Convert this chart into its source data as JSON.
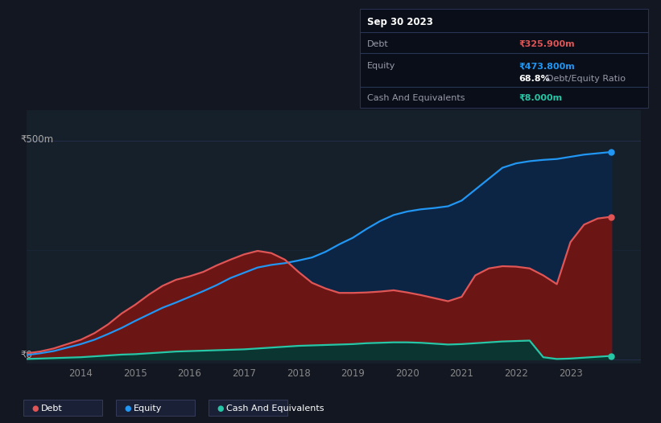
{
  "bg_color": "#131722",
  "plot_bg_color": "#15202b",
  "grid_color": "#263050",
  "title_y_label": "₹500m",
  "zero_y_label": "₹0",
  "ylim": [
    -10,
    570
  ],
  "xlim": [
    2013.0,
    2024.3
  ],
  "debt_color": "#e05555",
  "equity_color": "#2196f3",
  "cash_color": "#26c6a6",
  "debt_fill": "#6b1515",
  "equity_fill": "#0d2545",
  "cash_fill": "#0a3530",
  "legend_bg": "#1e2a3a",
  "annotation_box_bg": "#090e18",
  "annotation_title": "Sep 30 2023",
  "annotation_debt_label": "Debt",
  "annotation_debt_value": "₹325.900m",
  "annotation_equity_label": "Equity",
  "annotation_equity_value": "₹473.800m",
  "annotation_ratio": "68.8%",
  "annotation_ratio_text": "Debt/Equity Ratio",
  "annotation_cash_label": "Cash And Equivalents",
  "annotation_cash_value": "₹8.000m",
  "years": [
    2013.0,
    2013.25,
    2013.5,
    2013.75,
    2014.0,
    2014.25,
    2014.5,
    2014.75,
    2015.0,
    2015.25,
    2015.5,
    2015.75,
    2016.0,
    2016.25,
    2016.5,
    2016.75,
    2017.0,
    2017.25,
    2017.5,
    2017.75,
    2018.0,
    2018.25,
    2018.5,
    2018.75,
    2019.0,
    2019.25,
    2019.5,
    2019.75,
    2020.0,
    2020.25,
    2020.5,
    2020.75,
    2021.0,
    2021.25,
    2021.5,
    2021.75,
    2022.0,
    2022.25,
    2022.5,
    2022.75,
    2023.0,
    2023.25,
    2023.5,
    2023.75
  ],
  "debt": [
    14,
    18,
    25,
    35,
    45,
    60,
    80,
    105,
    125,
    148,
    168,
    182,
    190,
    200,
    215,
    228,
    240,
    248,
    243,
    228,
    200,
    175,
    162,
    152,
    152,
    153,
    155,
    158,
    153,
    147,
    140,
    133,
    143,
    192,
    208,
    213,
    212,
    208,
    192,
    172,
    268,
    308,
    322,
    326
  ],
  "equity": [
    10,
    14,
    19,
    27,
    35,
    45,
    58,
    72,
    88,
    103,
    118,
    130,
    143,
    156,
    170,
    186,
    198,
    210,
    216,
    220,
    226,
    233,
    246,
    263,
    278,
    298,
    316,
    330,
    338,
    343,
    346,
    350,
    363,
    388,
    413,
    438,
    448,
    453,
    456,
    458,
    463,
    468,
    471,
    474
  ],
  "cash": [
    1,
    2,
    3,
    4,
    5,
    7,
    9,
    11,
    12,
    14,
    16,
    18,
    19,
    20,
    21,
    22,
    23,
    25,
    27,
    29,
    31,
    32,
    33,
    34,
    35,
    37,
    38,
    39,
    39,
    38,
    36,
    34,
    35,
    37,
    39,
    41,
    42,
    43,
    5,
    1,
    2,
    4,
    6,
    8
  ]
}
